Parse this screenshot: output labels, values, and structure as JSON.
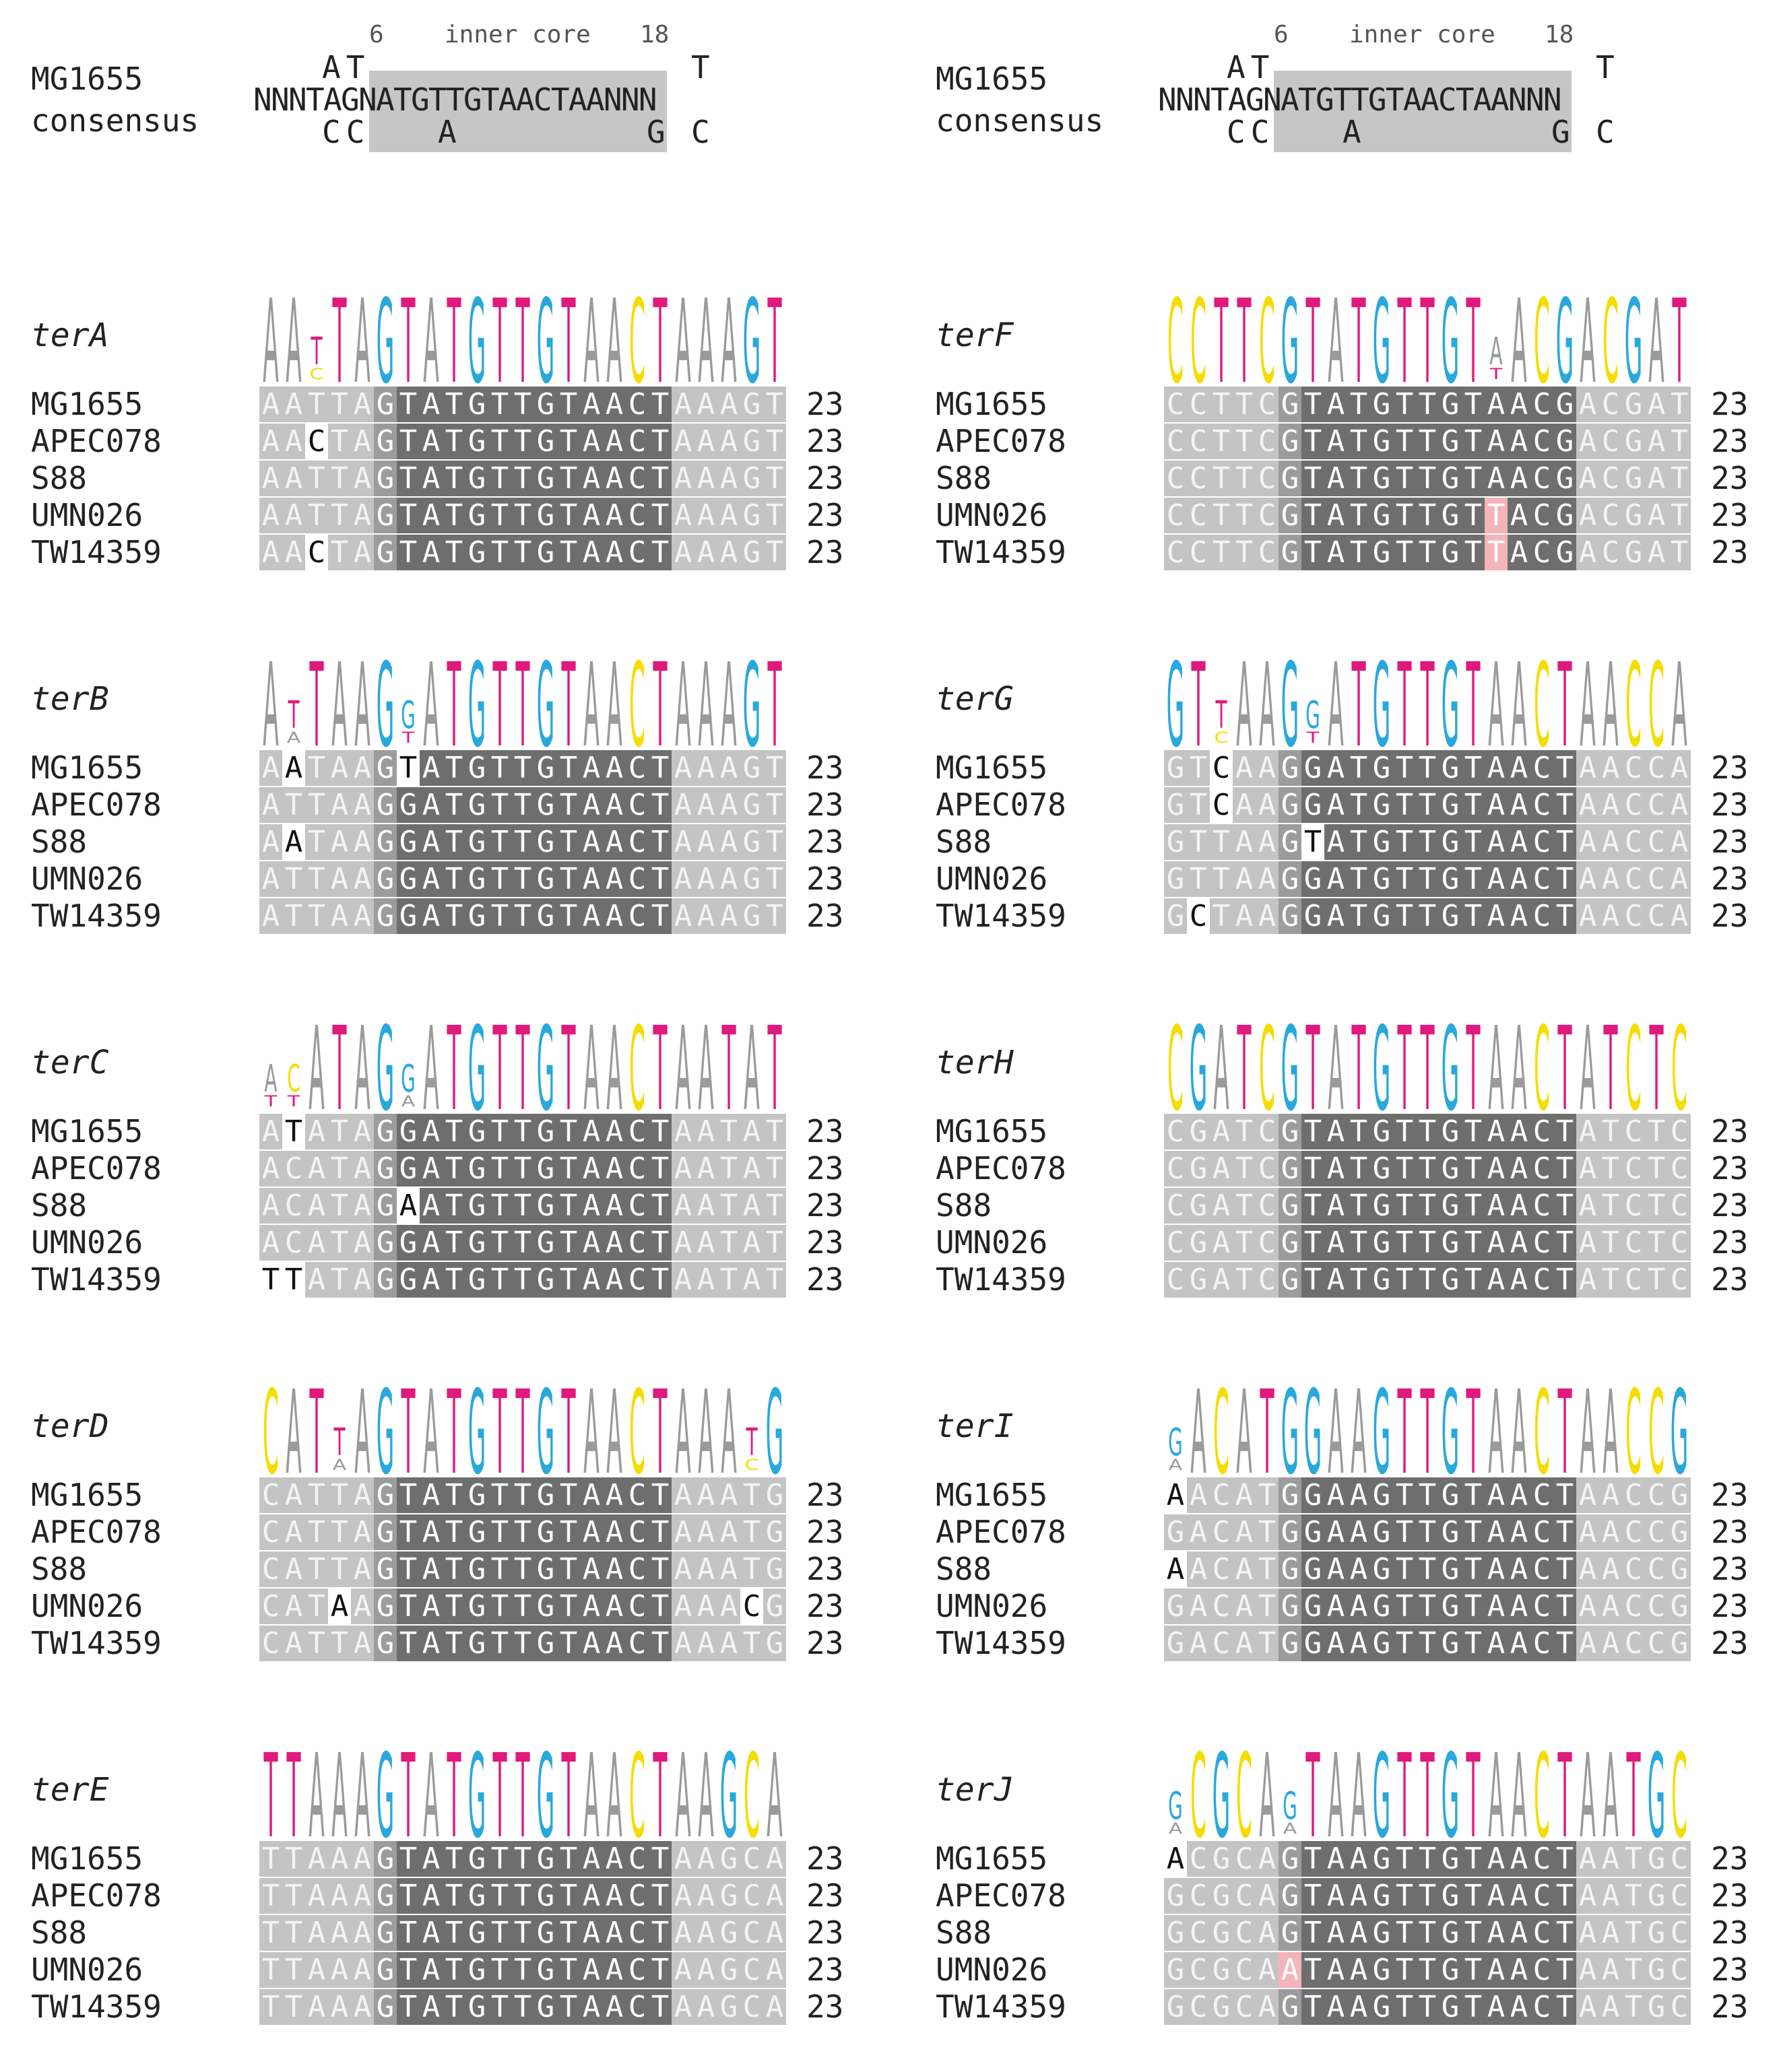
{
  "consensus": {
    "name_label": "MG1655",
    "cons_label": "consensus",
    "pos_start": "6",
    "region_label": "inner core",
    "pos_end": "18",
    "top_left": "AT",
    "top_right": "T",
    "main_seq": "NNNTAGNATGTTGTAACTAANNN",
    "bot_left": "CC",
    "bot_mid": "A",
    "bot_right_g": "G",
    "bot_right_c": "C"
  },
  "colors": {
    "A": "#9a9a9a",
    "C": "#f5dd00",
    "G": "#2aa8dc",
    "T": "#e0197d",
    "flank_bg": "#c4c4c4",
    "core_bg": "#6e6e6e",
    "pos6_bg": "#9c9c9c",
    "diff_bg": "#ffffff",
    "pink_bg": "#f3b4ba"
  },
  "sites": [
    {
      "name": "terA",
      "logo": [
        [
          "A"
        ],
        [
          "A"
        ],
        [
          "T",
          "C"
        ],
        [
          "T"
        ],
        [
          "A"
        ],
        [
          "G"
        ],
        [
          "T"
        ],
        [
          "A"
        ],
        [
          "T"
        ],
        [
          "G"
        ],
        [
          "T"
        ],
        [
          "T"
        ],
        [
          "G"
        ],
        [
          "T"
        ],
        [
          "A"
        ],
        [
          "A"
        ],
        [
          "C"
        ],
        [
          "T"
        ],
        [
          "A"
        ],
        [
          "A"
        ],
        [
          "A"
        ],
        [
          "G"
        ],
        [
          "T"
        ]
      ],
      "rows": [
        {
          "strain": "MG1655",
          "seq": "AATTAGTATGTTGTAACTAAAGT",
          "count": "23",
          "diffs": []
        },
        {
          "strain": "APEC078",
          "seq": "AACTAGTATGTTGTAACTAAAGT",
          "count": "23",
          "diffs": [
            2
          ]
        },
        {
          "strain": "S88",
          "seq": "AATTAGTATGTTGTAACTAAAGT",
          "count": "23",
          "diffs": []
        },
        {
          "strain": "UMN026",
          "seq": "AATTAGTATGTTGTAACTAAAGT",
          "count": "23",
          "diffs": []
        },
        {
          "strain": "TW14359",
          "seq": "AACTAGTATGTTGTAACTAAAGT",
          "count": "23",
          "diffs": [
            2
          ]
        }
      ]
    },
    {
      "name": "terF",
      "logo": [
        [
          "C"
        ],
        [
          "C"
        ],
        [
          "T"
        ],
        [
          "T"
        ],
        [
          "C"
        ],
        [
          "G"
        ],
        [
          "T"
        ],
        [
          "A"
        ],
        [
          "T"
        ],
        [
          "G"
        ],
        [
          "T"
        ],
        [
          "T"
        ],
        [
          "G"
        ],
        [
          "T"
        ],
        [
          "A",
          "T"
        ],
        [
          "A"
        ],
        [
          "C"
        ],
        [
          "G"
        ],
        [
          "A"
        ],
        [
          "C"
        ],
        [
          "G"
        ],
        [
          "A"
        ],
        [
          "T"
        ]
      ],
      "rows": [
        {
          "strain": "MG1655",
          "seq": "CCTTCGTATGTTGTAACGACGAT",
          "count": "23",
          "diffs": []
        },
        {
          "strain": "APEC078",
          "seq": "CCTTCGTATGTTGTAACGACGAT",
          "count": "23",
          "diffs": []
        },
        {
          "strain": "S88",
          "seq": "CCTTCGTATGTTGTAACGACGAT",
          "count": "23",
          "diffs": []
        },
        {
          "strain": "UMN026",
          "seq": "CCTTCGTATGTTGTTACGACGAT",
          "count": "23",
          "diffs": [],
          "pink": [
            14
          ]
        },
        {
          "strain": "TW14359",
          "seq": "CCTTCGTATGTTGTTACGACGAT",
          "count": "23",
          "diffs": [],
          "pink": [
            14
          ]
        }
      ]
    },
    {
      "name": "terB",
      "logo": [
        [
          "A"
        ],
        [
          "T",
          "A"
        ],
        [
          "T"
        ],
        [
          "A"
        ],
        [
          "A"
        ],
        [
          "G"
        ],
        [
          "G",
          "T"
        ],
        [
          "A"
        ],
        [
          "T"
        ],
        [
          "G"
        ],
        [
          "T"
        ],
        [
          "T"
        ],
        [
          "G"
        ],
        [
          "T"
        ],
        [
          "A"
        ],
        [
          "A"
        ],
        [
          "C"
        ],
        [
          "T"
        ],
        [
          "A"
        ],
        [
          "A"
        ],
        [
          "A"
        ],
        [
          "G"
        ],
        [
          "T"
        ]
      ],
      "rows": [
        {
          "strain": "MG1655",
          "seq": "AATAAGTATGTTGTAACTAAAGT",
          "count": "23",
          "diffs": [
            1,
            6
          ]
        },
        {
          "strain": "APEC078",
          "seq": "ATTAAGGATGTTGTAACTAAAGT",
          "count": "23",
          "diffs": []
        },
        {
          "strain": "S88",
          "seq": "AATAAGGATGTTGTAACTAAAGT",
          "count": "23",
          "diffs": [
            1
          ]
        },
        {
          "strain": "UMN026",
          "seq": "ATTAAGGATGTTGTAACTAAAGT",
          "count": "23",
          "diffs": []
        },
        {
          "strain": "TW14359",
          "seq": "ATTAAGGATGTTGTAACTAAAGT",
          "count": "23",
          "diffs": []
        }
      ]
    },
    {
      "name": "terG",
      "logo": [
        [
          "G"
        ],
        [
          "T"
        ],
        [
          "T",
          "C"
        ],
        [
          "A"
        ],
        [
          "A"
        ],
        [
          "G"
        ],
        [
          "G",
          "T"
        ],
        [
          "A"
        ],
        [
          "T"
        ],
        [
          "G"
        ],
        [
          "T"
        ],
        [
          "T"
        ],
        [
          "G"
        ],
        [
          "T"
        ],
        [
          "A"
        ],
        [
          "A"
        ],
        [
          "C"
        ],
        [
          "T"
        ],
        [
          "A"
        ],
        [
          "A"
        ],
        [
          "C"
        ],
        [
          "C"
        ],
        [
          "A"
        ]
      ],
      "rows": [
        {
          "strain": "MG1655",
          "seq": "GTCAAGGATGTTGTAACTAACCA",
          "count": "23",
          "diffs": [
            2
          ]
        },
        {
          "strain": "APEC078",
          "seq": "GTCAAGGATGTTGTAACTAACCA",
          "count": "23",
          "diffs": [
            2
          ]
        },
        {
          "strain": "S88",
          "seq": "GTTAAGTATGTTGTAACTAACCA",
          "count": "23",
          "diffs": [
            6
          ]
        },
        {
          "strain": "UMN026",
          "seq": "GTTAAGGATGTTGTAACTAACCA",
          "count": "23",
          "diffs": []
        },
        {
          "strain": "TW14359",
          "seq": "GCTAAGGATGTTGTAACTAACCA",
          "count": "23",
          "diffs": [
            1
          ]
        }
      ]
    },
    {
      "name": "terC",
      "logo": [
        [
          "A",
          "T"
        ],
        [
          "C",
          "T"
        ],
        [
          "A"
        ],
        [
          "T"
        ],
        [
          "A"
        ],
        [
          "G"
        ],
        [
          "G",
          "A"
        ],
        [
          "A"
        ],
        [
          "T"
        ],
        [
          "G"
        ],
        [
          "T"
        ],
        [
          "T"
        ],
        [
          "G"
        ],
        [
          "T"
        ],
        [
          "A"
        ],
        [
          "A"
        ],
        [
          "C"
        ],
        [
          "T"
        ],
        [
          "A"
        ],
        [
          "A"
        ],
        [
          "T"
        ],
        [
          "A"
        ],
        [
          "T"
        ]
      ],
      "rows": [
        {
          "strain": "MG1655",
          "seq": "ATATAGGATGTTGTAACTAATAT",
          "count": "23",
          "diffs": [
            1
          ]
        },
        {
          "strain": "APEC078",
          "seq": "ACATAGGATGTTGTAACTAATAT",
          "count": "23",
          "diffs": []
        },
        {
          "strain": "S88",
          "seq": "ACATAGAATGTTGTAACTAATAT",
          "count": "23",
          "diffs": [
            6
          ]
        },
        {
          "strain": "UMN026",
          "seq": "ACATAGGATGTTGTAACTAATAT",
          "count": "23",
          "diffs": []
        },
        {
          "strain": "TW14359",
          "seq": "TTATAGGATGTTGTAACTAATAT",
          "count": "23",
          "diffs": [
            0,
            1
          ]
        }
      ]
    },
    {
      "name": "terH",
      "logo": [
        [
          "C"
        ],
        [
          "G"
        ],
        [
          "A"
        ],
        [
          "T"
        ],
        [
          "C"
        ],
        [
          "G"
        ],
        [
          "T"
        ],
        [
          "A"
        ],
        [
          "T"
        ],
        [
          "G"
        ],
        [
          "T"
        ],
        [
          "T"
        ],
        [
          "G"
        ],
        [
          "T"
        ],
        [
          "A"
        ],
        [
          "A"
        ],
        [
          "C"
        ],
        [
          "T"
        ],
        [
          "A"
        ],
        [
          "T"
        ],
        [
          "C"
        ],
        [
          "T"
        ],
        [
          "C"
        ]
      ],
      "rows": [
        {
          "strain": "MG1655",
          "seq": "CGATCGTATGTTGTAACTATCTC",
          "count": "23",
          "diffs": []
        },
        {
          "strain": "APEC078",
          "seq": "CGATCGTATGTTGTAACTATCTC",
          "count": "23",
          "diffs": []
        },
        {
          "strain": "S88",
          "seq": "CGATCGTATGTTGTAACTATCTC",
          "count": "23",
          "diffs": []
        },
        {
          "strain": "UMN026",
          "seq": "CGATCGTATGTTGTAACTATCTC",
          "count": "23",
          "diffs": []
        },
        {
          "strain": "TW14359",
          "seq": "CGATCGTATGTTGTAACTATCTC",
          "count": "23",
          "diffs": []
        }
      ]
    },
    {
      "name": "terD",
      "logo": [
        [
          "C"
        ],
        [
          "A"
        ],
        [
          "T"
        ],
        [
          "T",
          "A"
        ],
        [
          "A"
        ],
        [
          "G"
        ],
        [
          "T"
        ],
        [
          "A"
        ],
        [
          "T"
        ],
        [
          "G"
        ],
        [
          "T"
        ],
        [
          "T"
        ],
        [
          "G"
        ],
        [
          "T"
        ],
        [
          "A"
        ],
        [
          "A"
        ],
        [
          "C"
        ],
        [
          "T"
        ],
        [
          "A"
        ],
        [
          "A"
        ],
        [
          "A"
        ],
        [
          "T",
          "C"
        ],
        [
          "G"
        ]
      ],
      "rows": [
        {
          "strain": "MG1655",
          "seq": "CATTAGTATGTTGTAACTAAATG",
          "count": "23",
          "diffs": []
        },
        {
          "strain": "APEC078",
          "seq": "CATTAGTATGTTGTAACTAAATG",
          "count": "23",
          "diffs": []
        },
        {
          "strain": "S88",
          "seq": "CATTAGTATGTTGTAACTAAATG",
          "count": "23",
          "diffs": []
        },
        {
          "strain": "UMN026",
          "seq": "CATAAGTATGTTGTAACTAAACG",
          "count": "23",
          "diffs": [
            3,
            21
          ]
        },
        {
          "strain": "TW14359",
          "seq": "CATTAGTATGTTGTAACTAAATG",
          "count": "23",
          "diffs": []
        }
      ]
    },
    {
      "name": "terI",
      "logo": [
        [
          "G",
          "A"
        ],
        [
          "A"
        ],
        [
          "C"
        ],
        [
          "A"
        ],
        [
          "T"
        ],
        [
          "G"
        ],
        [
          "G"
        ],
        [
          "A"
        ],
        [
          "A"
        ],
        [
          "G"
        ],
        [
          "T"
        ],
        [
          "T"
        ],
        [
          "G"
        ],
        [
          "T"
        ],
        [
          "A"
        ],
        [
          "A"
        ],
        [
          "C"
        ],
        [
          "T"
        ],
        [
          "A"
        ],
        [
          "A"
        ],
        [
          "C"
        ],
        [
          "C"
        ],
        [
          "G"
        ]
      ],
      "rows": [
        {
          "strain": "MG1655",
          "seq": "AACATGGAAGTTGTAACTAACCG",
          "count": "23",
          "diffs": [
            0
          ]
        },
        {
          "strain": "APEC078",
          "seq": "GACATGGAAGTTGTAACTAACCG",
          "count": "23",
          "diffs": []
        },
        {
          "strain": "S88",
          "seq": "AACATGGAAGTTGTAACTAACCG",
          "count": "23",
          "diffs": [
            0
          ]
        },
        {
          "strain": "UMN026",
          "seq": "GACATGGAAGTTGTAACTAACCG",
          "count": "23",
          "diffs": []
        },
        {
          "strain": "TW14359",
          "seq": "GACATGGAAGTTGTAACTAACCG",
          "count": "23",
          "diffs": []
        }
      ]
    },
    {
      "name": "terE",
      "logo": [
        [
          "T"
        ],
        [
          "T"
        ],
        [
          "A"
        ],
        [
          "A"
        ],
        [
          "A"
        ],
        [
          "G"
        ],
        [
          "T"
        ],
        [
          "A"
        ],
        [
          "T"
        ],
        [
          "G"
        ],
        [
          "T"
        ],
        [
          "T"
        ],
        [
          "G"
        ],
        [
          "T"
        ],
        [
          "A"
        ],
        [
          "A"
        ],
        [
          "C"
        ],
        [
          "T"
        ],
        [
          "A"
        ],
        [
          "A"
        ],
        [
          "G"
        ],
        [
          "C"
        ],
        [
          "A"
        ]
      ],
      "rows": [
        {
          "strain": "MG1655",
          "seq": "TTAAAGTATGTTGTAACTAAGCA",
          "count": "23",
          "diffs": []
        },
        {
          "strain": "APEC078",
          "seq": "TTAAAGTATGTTGTAACTAAGCA",
          "count": "23",
          "diffs": []
        },
        {
          "strain": "S88",
          "seq": "TTAAAGTATGTTGTAACTAAGCA",
          "count": "23",
          "diffs": []
        },
        {
          "strain": "UMN026",
          "seq": "TTAAAGTATGTTGTAACTAAGCA",
          "count": "23",
          "diffs": []
        },
        {
          "strain": "TW14359",
          "seq": "TTAAAGTATGTTGTAACTAAGCA",
          "count": "23",
          "diffs": []
        }
      ]
    },
    {
      "name": "terJ",
      "logo": [
        [
          "G",
          "A"
        ],
        [
          "C"
        ],
        [
          "G"
        ],
        [
          "C"
        ],
        [
          "A"
        ],
        [
          "G",
          "A"
        ],
        [
          "T"
        ],
        [
          "A"
        ],
        [
          "A"
        ],
        [
          "G"
        ],
        [
          "T"
        ],
        [
          "T"
        ],
        [
          "G"
        ],
        [
          "T"
        ],
        [
          "A"
        ],
        [
          "A"
        ],
        [
          "C"
        ],
        [
          "T"
        ],
        [
          "A"
        ],
        [
          "A"
        ],
        [
          "T"
        ],
        [
          "G"
        ],
        [
          "C"
        ]
      ],
      "rows": [
        {
          "strain": "MG1655",
          "seq": "ACGCAGTAAGTTGTAACTAATGC",
          "count": "23",
          "diffs": [
            0
          ]
        },
        {
          "strain": "APEC078",
          "seq": "GCGCAGTAAGTTGTAACTAATGC",
          "count": "23",
          "diffs": []
        },
        {
          "strain": "S88",
          "seq": "GCGCAGTAAGTTGTAACTAATGC",
          "count": "23",
          "diffs": []
        },
        {
          "strain": "UMN026",
          "seq": "GCGCAATAAGTTGTAACTAATGC",
          "count": "23",
          "diffs": [],
          "pink": [
            5
          ]
        },
        {
          "strain": "TW14359",
          "seq": "GCGCAGTAAGTTGTAACTAATGC",
          "count": "23",
          "diffs": []
        }
      ]
    }
  ]
}
